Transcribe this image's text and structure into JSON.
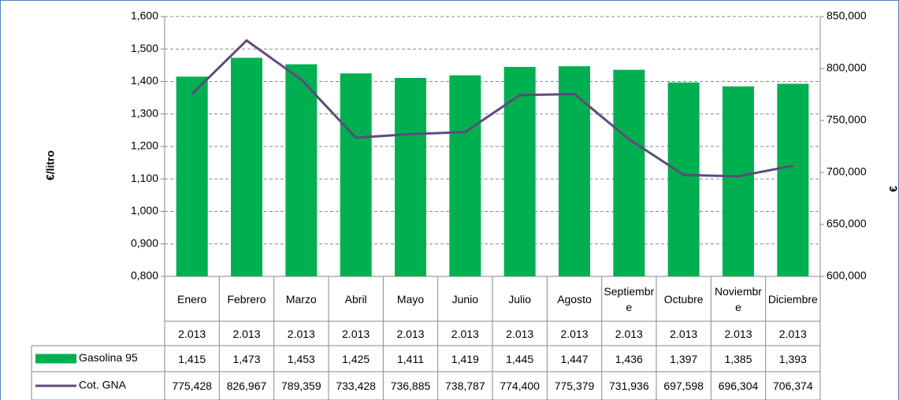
{
  "chart_data": {
    "type": "bar",
    "ylabel": "€/litro",
    "y2label": "€",
    "categories": [
      [
        "Enero",
        "2.013"
      ],
      [
        "Febrero",
        "2.013"
      ],
      [
        "Marzo",
        "2.013"
      ],
      [
        "Abril",
        "2.013"
      ],
      [
        "Mayo",
        "2.013"
      ],
      [
        "Junio",
        "2.013"
      ],
      [
        "Julio",
        "2.013"
      ],
      [
        "Agosto",
        "2.013"
      ],
      [
        "Septiembre",
        "2.013"
      ],
      [
        "Octubre",
        "2.013"
      ],
      [
        "Noviembre",
        "2.013"
      ],
      [
        "Diciembre",
        "2.013"
      ]
    ],
    "series": [
      {
        "name": "Gasolina 95",
        "type": "bar",
        "color": "#00b050",
        "axis": "y",
        "values": [
          1.415,
          1.473,
          1.453,
          1.425,
          1.411,
          1.419,
          1.445,
          1.447,
          1.436,
          1.397,
          1.385,
          1.393
        ],
        "value_labels": [
          "1,415",
          "1,473",
          "1,453",
          "1,425",
          "1,411",
          "1,419",
          "1,445",
          "1,447",
          "1,436",
          "1,397",
          "1,385",
          "1,393"
        ]
      },
      {
        "name": "Cot. GNA",
        "type": "line",
        "color": "#604a7b",
        "axis": "y2",
        "values": [
          775.428,
          826.967,
          789.359,
          733.428,
          736.885,
          738.787,
          774.4,
          775.379,
          731.936,
          697.598,
          696.304,
          706.374
        ],
        "value_labels": [
          "775,428",
          "826,967",
          "789,359",
          "733,428",
          "736,885",
          "738,787",
          "774,400",
          "775,379",
          "731,936",
          "697,598",
          "696,304",
          "706,374"
        ]
      }
    ],
    "ylim": [
      0.8,
      1.6
    ],
    "yticks": [
      {
        "value": 0.8,
        "label": "0,800"
      },
      {
        "value": 0.9,
        "label": "0,900"
      },
      {
        "value": 1.0,
        "label": "1,000"
      },
      {
        "value": 1.1,
        "label": "1,100"
      },
      {
        "value": 1.2,
        "label": "1,200"
      },
      {
        "value": 1.3,
        "label": "1,300"
      },
      {
        "value": 1.4,
        "label": "1,400"
      },
      {
        "value": 1.5,
        "label": "1,500"
      },
      {
        "value": 1.6,
        "label": "1,600"
      }
    ],
    "y2lim": [
      600,
      850
    ],
    "y2ticks": [
      {
        "value": 600,
        "label": "600,000"
      },
      {
        "value": 650,
        "label": "650,000"
      },
      {
        "value": 700,
        "label": "700,000"
      },
      {
        "value": 750,
        "label": "750,000"
      },
      {
        "value": 800,
        "label": "800,000"
      },
      {
        "value": 850,
        "label": "850,000"
      }
    ],
    "grid": true
  }
}
